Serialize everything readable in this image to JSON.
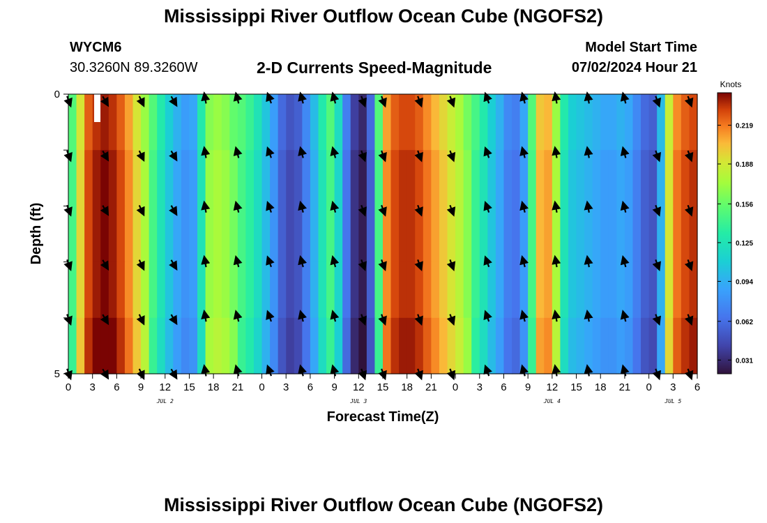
{
  "header": {
    "title": "Mississippi River Outflow Ocean Cube (NGOFS2)",
    "station_id": "WYCM6",
    "station_coords": "30.3260N  89.3260W",
    "plot_title": "2-D Currents Speed-Magnitude",
    "model_label": "Model Start Time",
    "model_time": "07/02/2024 Hour 21"
  },
  "footer": {
    "title": "Mississippi River Outflow Ocean Cube (NGOFS2)"
  },
  "chart_data": {
    "type": "heatmap",
    "title": "2-D Currents Speed-Magnitude",
    "xlabel": "Forecast Time(Z)",
    "ylabel": "Depth (ft)",
    "x_ticks": [
      "0",
      "3",
      "6",
      "9",
      "12",
      "15",
      "18",
      "21",
      "0",
      "3",
      "6",
      "9",
      "12",
      "15",
      "18",
      "21",
      "0",
      "3",
      "6",
      "9",
      "12",
      "15",
      "18",
      "21",
      "0",
      "3",
      "6"
    ],
    "x_range_hours": [
      0,
      78
    ],
    "y_ticks": [
      "0",
      "5"
    ],
    "y_range_ft": [
      0,
      5
    ],
    "day_labels": [
      {
        "label": "JUL 2",
        "hour": 12
      },
      {
        "label": "JUL 3",
        "hour": 36
      },
      {
        "label": "JUL 4",
        "hour": 60
      },
      {
        "label": "JUL 5",
        "hour": 75
      }
    ],
    "colorbar": {
      "title": "Knots",
      "ticks": [
        "0.219",
        "0.188",
        "0.156",
        "0.125",
        "0.094",
        "0.062",
        "0.031"
      ],
      "tick_values": [
        0.219,
        0.188,
        0.156,
        0.125,
        0.094,
        0.062,
        0.031
      ],
      "range": [
        0.02,
        0.245
      ]
    },
    "speed_by_hour_knots": [
      0.15,
      0.19,
      0.225,
      0.235,
      0.24,
      0.235,
      0.225,
      0.21,
      0.19,
      0.17,
      0.15,
      0.13,
      0.11,
      0.095,
      0.085,
      0.09,
      0.13,
      0.165,
      0.17,
      0.165,
      0.155,
      0.15,
      0.14,
      0.125,
      0.105,
      0.085,
      0.06,
      0.05,
      0.055,
      0.075,
      0.1,
      0.13,
      0.15,
      0.12,
      0.07,
      0.04,
      0.03,
      0.06,
      0.15,
      0.21,
      0.225,
      0.23,
      0.23,
      0.225,
      0.215,
      0.205,
      0.195,
      0.185,
      0.175,
      0.16,
      0.145,
      0.13,
      0.11,
      0.095,
      0.075,
      0.07,
      0.09,
      0.15,
      0.2,
      0.205,
      0.17,
      0.13,
      0.11,
      0.105,
      0.1,
      0.095,
      0.09,
      0.09,
      0.095,
      0.09,
      0.075,
      0.06,
      0.055,
      0.1,
      0.185,
      0.215,
      0.225,
      0.23
    ],
    "depth_rows": 5,
    "surface_row_adjust_knots": [
      0.0,
      -0.01,
      -0.01,
      -0.01,
      -0.02
    ],
    "arrow_columns_hours": [
      0,
      4.5,
      9,
      13,
      17,
      21,
      25,
      29,
      33,
      36.5,
      39,
      43.5,
      47.5,
      52,
      56.5,
      60.5,
      64.5,
      69,
      73,
      77
    ],
    "arrow_direction_deg_clockwise_from_north": [
      160,
      150,
      155,
      150,
      350,
      345,
      340,
      345,
      345,
      160,
      160,
      160,
      160,
      340,
      345,
      350,
      350,
      345,
      160,
      160
    ],
    "arrow_rows": 6
  }
}
